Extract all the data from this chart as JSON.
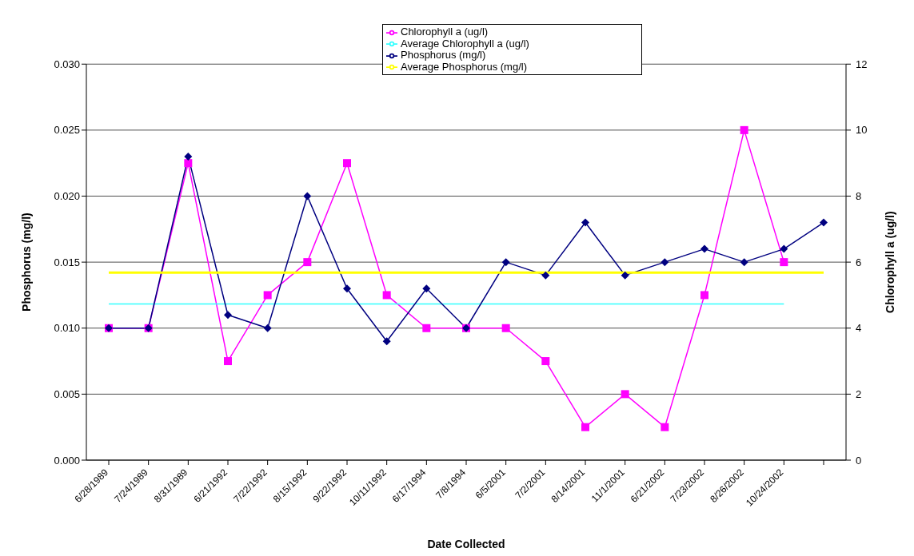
{
  "chart_data": {
    "type": "line",
    "xlabel": "Date Collected",
    "ylabel": "Phosphorus (mg/l)",
    "y2label": "Chlorophyll a (ug/l)",
    "categories": [
      "6/28/1989",
      "7/24/1989",
      "8/31/1989",
      "6/21/1992",
      "7/22/1992",
      "8/15/1992",
      "9/22/1992",
      "10/11/1992",
      "6/17/1994",
      "7/8/1994",
      "6/5/2001",
      "7/2/2001",
      "8/14/2001",
      "11/1/2001",
      "6/21/2002",
      "7/23/2002",
      "8/26/2002",
      "10/24/2002",
      null
    ],
    "series": [
      {
        "name": "Chlorophyll a (ug/l)",
        "color": "#ff00ff",
        "axis": "y2",
        "marker": "square",
        "values": [
          4,
          4,
          9,
          3,
          5,
          6,
          9,
          5,
          4,
          4,
          4,
          3,
          1,
          2,
          1,
          5,
          10,
          6,
          null
        ]
      },
      {
        "name": "Average Chlorophyll a (ug/l)",
        "color": "#33ffff",
        "axis": "y2",
        "marker": "none",
        "values": [
          4.73,
          4.73,
          4.73,
          4.73,
          4.73,
          4.73,
          4.73,
          4.73,
          4.73,
          4.73,
          4.73,
          4.73,
          4.73,
          4.73,
          4.73,
          4.73,
          4.73,
          4.73,
          null
        ]
      },
      {
        "name": "Phosphorus (mg/l)",
        "color": "#000080",
        "marker": "diamond",
        "values": [
          0.01,
          0.01,
          0.023,
          0.011,
          0.01,
          0.02,
          0.013,
          0.009,
          0.013,
          0.01,
          0.015,
          0.014,
          0.018,
          0.014,
          0.015,
          0.016,
          0.015,
          0.016,
          0.018
        ]
      },
      {
        "name": "Average Phosphorus (mg/l)",
        "color": "#ffff00",
        "marker": "none",
        "values": [
          0.0142,
          0.0142,
          0.0142,
          0.0142,
          0.0142,
          0.0142,
          0.0142,
          0.0142,
          0.0142,
          0.0142,
          0.0142,
          0.0142,
          0.0142,
          0.0142,
          0.0142,
          0.0142,
          0.0142,
          0.0142,
          0.0142
        ]
      }
    ],
    "ylim": [
      0,
      0.03
    ],
    "yticks": [
      {
        "value": 0,
        "label": "0.000"
      },
      {
        "value": 0.005,
        "label": "0.005"
      },
      {
        "value": 0.01,
        "label": "0.010"
      },
      {
        "value": 0.015,
        "label": "0.015"
      },
      {
        "value": 0.02,
        "label": "0.020"
      },
      {
        "value": 0.025,
        "label": "0.025"
      },
      {
        "value": 0.03,
        "label": "0.030"
      }
    ],
    "y2lim": [
      0,
      12
    ],
    "y2ticks": [
      0,
      2,
      4,
      6,
      8,
      10,
      12
    ],
    "grid": "y",
    "legend": "top",
    "line_style": "solid"
  }
}
